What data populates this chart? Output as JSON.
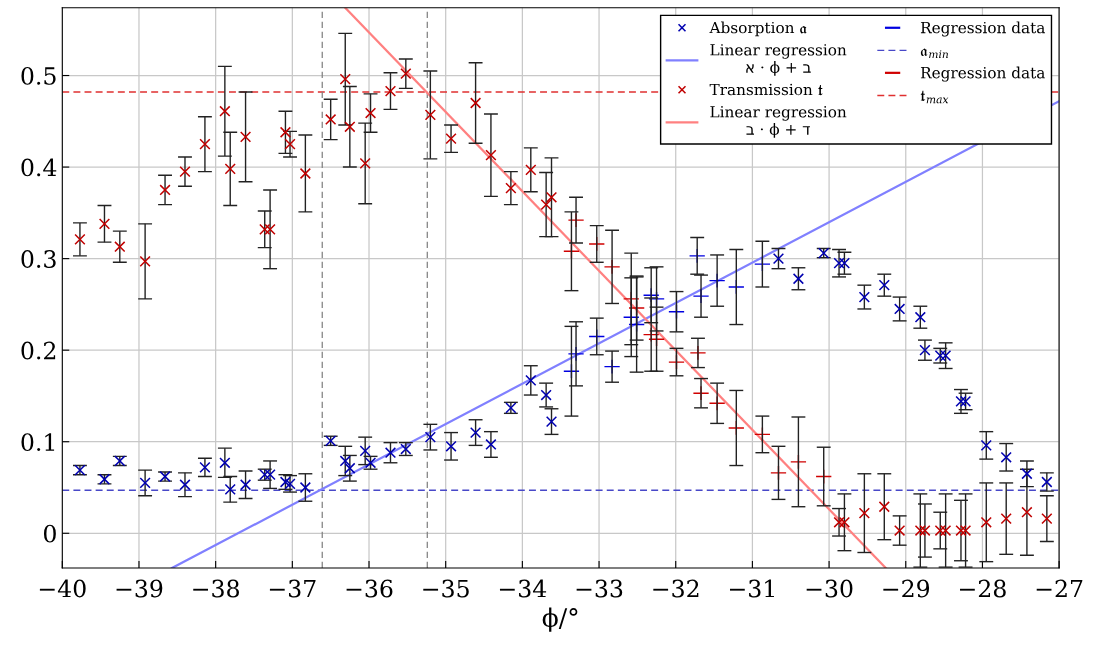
{
  "chart_data": {
    "type": "scatter",
    "xlabel": "ϕ/°",
    "xlim": [
      -40,
      -27
    ],
    "ylim": [
      -0.038,
      0.574
    ],
    "xticks": [
      -40,
      -39,
      -38,
      -37,
      -36,
      -35,
      -34,
      -33,
      -32,
      -31,
      -30,
      -29,
      -28,
      -27
    ],
    "yticks": [
      0,
      0.1,
      0.2,
      0.3,
      0.4,
      0.5
    ],
    "grid": true,
    "legend": "top right",
    "series": [
      {
        "name": "Absorption 𝔞",
        "marker": "cross",
        "color": "#0000b0",
        "x": [
          -39.77,
          -39.45,
          -39.25,
          -38.92,
          -38.66,
          -38.4,
          -38.14,
          -37.88,
          -37.81,
          -37.61,
          -37.36,
          -37.29,
          -37.09,
          -37.03,
          -36.83,
          -36.5,
          -36.31,
          -36.25,
          -36.05,
          -35.98,
          -35.72,
          -35.52,
          -35.2,
          -34.93,
          -34.61,
          -34.41,
          -34.15,
          -33.89,
          -33.69,
          -33.62,
          -30.66,
          -30.4,
          -30.07,
          -29.87,
          -29.8,
          -29.54,
          -29.28,
          -29.08,
          -28.81,
          -28.75,
          -28.55,
          -28.48,
          -28.28,
          -28.22,
          -27.95,
          -27.69,
          -27.42,
          -27.16
        ],
        "values": [
          0.069,
          0.059,
          0.079,
          0.055,
          0.062,
          0.053,
          0.072,
          0.077,
          0.048,
          0.053,
          0.064,
          0.064,
          0.056,
          0.054,
          0.05,
          0.101,
          0.079,
          0.071,
          0.09,
          0.077,
          0.088,
          0.092,
          0.105,
          0.095,
          0.11,
          0.097,
          0.137,
          0.167,
          0.151,
          0.122,
          0.3,
          0.278,
          0.306,
          0.295,
          0.295,
          0.258,
          0.271,
          0.245,
          0.236,
          0.2,
          0.194,
          0.194,
          0.144,
          0.144,
          0.096,
          0.083,
          0.065,
          0.056
        ],
        "errors": [
          0.005,
          0.005,
          0.005,
          0.014,
          0.005,
          0.013,
          0.01,
          0.016,
          0.014,
          0.015,
          0.006,
          0.015,
          0.008,
          0.009,
          0.015,
          0.005,
          0.016,
          0.014,
          0.015,
          0.007,
          0.011,
          0.007,
          0.014,
          0.015,
          0.014,
          0.014,
          0.006,
          0.016,
          0.013,
          0.014,
          0.011,
          0.012,
          0.005,
          0.015,
          0.012,
          0.013,
          0.012,
          0.013,
          0.012,
          0.011,
          0.008,
          0.014,
          0.013,
          0.009,
          0.015,
          0.015,
          0.014,
          0.01
        ]
      },
      {
        "name": "Linear regression\nא · ϕ + ב",
        "type": "line",
        "color": "#8080ff",
        "x": [
          -38.57,
          -27
        ],
        "values": [
          -0.038,
          0.472
        ]
      },
      {
        "name": "Transmission 𝔱",
        "marker": "cross",
        "color": "#c00000",
        "x": [
          -39.77,
          -39.45,
          -39.25,
          -38.92,
          -38.66,
          -38.4,
          -38.14,
          -37.88,
          -37.81,
          -37.61,
          -37.36,
          -37.29,
          -37.09,
          -37.03,
          -36.83,
          -36.5,
          -36.31,
          -36.25,
          -36.05,
          -35.98,
          -35.72,
          -35.52,
          -35.2,
          -34.93,
          -34.61,
          -34.41,
          -34.15,
          -33.89,
          -33.69,
          -33.62,
          -29.87,
          -29.8,
          -29.54,
          -29.28,
          -29.08,
          -28.81,
          -28.75,
          -28.55,
          -28.48,
          -28.28,
          -28.22,
          -27.95,
          -27.69,
          -27.42,
          -27.16
        ],
        "values": [
          0.321,
          0.338,
          0.313,
          0.297,
          0.375,
          0.395,
          0.425,
          0.461,
          0.398,
          0.433,
          0.332,
          0.332,
          0.438,
          0.425,
          0.393,
          0.452,
          0.496,
          0.444,
          0.404,
          0.459,
          0.483,
          0.502,
          0.457,
          0.431,
          0.47,
          0.413,
          0.377,
          0.397,
          0.359,
          0.367,
          0.012,
          0.012,
          0.022,
          0.029,
          0.003,
          0.003,
          0.003,
          0.003,
          0.003,
          0.003,
          0.003,
          0.012,
          0.016,
          0.023,
          0.016
        ],
        "errors": [
          0.018,
          0.02,
          0.017,
          0.041,
          0.016,
          0.016,
          0.03,
          0.049,
          0.04,
          0.049,
          0.02,
          0.043,
          0.023,
          0.014,
          0.042,
          0.022,
          0.05,
          0.044,
          0.044,
          0.021,
          0.02,
          0.016,
          0.048,
          0.015,
          0.044,
          0.045,
          0.018,
          0.024,
          0.035,
          0.043,
          0.015,
          0.031,
          0.043,
          0.036,
          0.016,
          0.04,
          0.029,
          0.02,
          0.04,
          0.033,
          0.04,
          0.043,
          0.039,
          0.047,
          0.025
        ]
      },
      {
        "name": "Linear regression\nב · ϕ + ד",
        "type": "line",
        "color": "#ff8080",
        "x": [
          -36.31,
          -29.26
        ],
        "values": [
          0.574,
          -0.038
        ]
      },
      {
        "name": "Regression data",
        "color": "#0000e0",
        "x": [
          -33.36,
          -33.3,
          -33.03,
          -32.83,
          -32.58,
          -32.51,
          -32.32,
          -32.25,
          -31.99,
          -31.72,
          -31.67,
          -31.46,
          -31.21,
          -30.87
        ],
        "values": [
          0.177,
          0.196,
          0.215,
          0.182,
          0.236,
          0.228,
          0.26,
          0.256,
          0.242,
          0.303,
          0.259,
          0.276,
          0.269,
          0.294
        ],
        "errors": [
          0.049,
          0.035,
          0.02,
          0.017,
          0.043,
          0.052,
          0.03,
          0.035,
          0.022,
          0.02,
          0.023,
          0.028,
          0.041,
          0.025
        ]
      },
      {
        "name": "Regression data",
        "color": "#d00000",
        "x": [
          -33.36,
          -33.3,
          -33.03,
          -32.83,
          -32.58,
          -32.51,
          -32.32,
          -32.25,
          -31.99,
          -31.71,
          -31.67,
          -31.46,
          -31.21,
          -30.87,
          -30.66,
          -30.4,
          -30.07
        ],
        "values": [
          0.308,
          0.342,
          0.316,
          0.291,
          0.256,
          0.246,
          0.217,
          0.212,
          0.187,
          0.197,
          0.153,
          0.142,
          0.115,
          0.108,
          0.066,
          0.078,
          0.062
        ],
        "errors": [
          0.043,
          0.025,
          0.02,
          0.04,
          0.05,
          0.035,
          0.04,
          0.035,
          0.015,
          0.016,
          0.016,
          0.022,
          0.041,
          0.02,
          0.029,
          0.049,
          0.032
        ]
      }
    ],
    "ref_lines": [
      {
        "axis": "y",
        "value": 0.047,
        "label": "𝔞$_{min}$",
        "color": "#4848c8",
        "line_style": "dashed"
      },
      {
        "axis": "y",
        "value": 0.482,
        "label": "𝔱$_{max}$",
        "color": "#e03030",
        "line_style": "dashed"
      },
      {
        "axis": "x",
        "value": -36.61,
        "color": "#808080",
        "line_style": "dashed"
      },
      {
        "axis": "x",
        "value": -35.24,
        "color": "#808080",
        "line_style": "dashed"
      }
    ]
  }
}
